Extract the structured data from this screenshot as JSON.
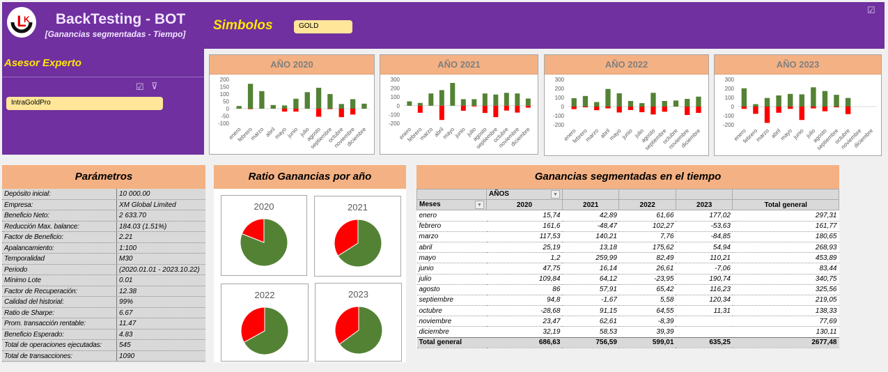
{
  "header": {
    "title": "BackTesting - BOT",
    "subtitle": "[Ganancias segmentadas - Tiempo]",
    "symbols_label": "Simbolos",
    "symbol_selected": "GOLD",
    "expert_label": "Asesor Experto",
    "expert_selected": "IntraGoldPro",
    "logo_text": "LK"
  },
  "colors": {
    "purple": "#7030a0",
    "peach": "#f4b183",
    "gain": "#548235",
    "loss": "#ff0000",
    "slicer": "#ffe699"
  },
  "year_charts": {
    "months": [
      "enero",
      "febrero",
      "marzo",
      "abril",
      "mayo",
      "junio",
      "julio",
      "agosto",
      "septiembre",
      "octubre",
      "noviembre",
      "diciembre"
    ],
    "charts": [
      {
        "title": "AÑO 2020",
        "ylim": [
          -100,
          200
        ],
        "ticks": [
          -100,
          -50,
          0,
          50,
          100,
          150,
          200
        ],
        "gains": [
          18,
          170,
          120,
          25,
          22,
          68,
          113,
          143,
          100,
          32,
          65,
          34
        ],
        "losses": [
          0,
          -3,
          0,
          0,
          -20,
          -20,
          0,
          -55,
          -3,
          -58,
          -40,
          0
        ]
      },
      {
        "title": "AÑO 2021",
        "ylim": [
          -200,
          300
        ],
        "ticks": [
          -200,
          -100,
          0,
          100,
          200,
          300
        ],
        "gains": [
          50,
          32,
          140,
          178,
          260,
          75,
          75,
          140,
          128,
          147,
          140,
          82
        ],
        "losses": [
          0,
          -80,
          0,
          -162,
          0,
          -57,
          -8,
          -82,
          -130,
          -55,
          -78,
          -22
        ]
      },
      {
        "title": "AÑO 2022",
        "ylim": [
          -200,
          300
        ],
        "ticks": [
          -200,
          -100,
          0,
          100,
          200,
          300
        ],
        "gains": [
          93,
          117,
          50,
          195,
          147,
          62,
          38,
          152,
          62,
          67,
          85,
          110
        ],
        "losses": [
          -28,
          -8,
          -40,
          -20,
          -65,
          -38,
          -62,
          -87,
          -57,
          0,
          -93,
          -70
        ]
      },
      {
        "title": "AÑO 2023",
        "ylim": [
          -200,
          300
        ],
        "ticks": [
          -200,
          -100,
          0,
          100,
          200,
          300
        ],
        "gains": [
          202,
          27,
          95,
          123,
          140,
          135,
          213,
          172,
          130,
          95,
          0,
          0
        ],
        "losses": [
          -25,
          -80,
          -180,
          -68,
          -25,
          -148,
          -20,
          -52,
          -8,
          -83,
          0,
          0
        ]
      }
    ]
  },
  "params": {
    "title": "Parámetros",
    "rows": [
      [
        "Depósito inicial:",
        "10 000.00"
      ],
      [
        "Empresa:",
        "XM Global Limited"
      ],
      [
        "Beneficio Neto:",
        "2 633.70"
      ],
      [
        "Reducción Max. balance:",
        "184.03 (1.51%)"
      ],
      [
        "Factor de Beneficio:",
        "2.21"
      ],
      [
        "Apalancamiento:",
        "1:100"
      ],
      [
        "Temporalidad",
        "M30"
      ],
      [
        "Periodo",
        "(2020.01.01 - 2023.10.22)"
      ],
      [
        "Mínimo Lote",
        "0.01"
      ],
      [
        "Factor de Recuperación:",
        "12.38"
      ],
      [
        "Calidad del historial:",
        "99%"
      ],
      [
        "Ratio de Sharpe:",
        "6.67"
      ],
      [
        "Prom. transacción rentable:",
        "11.47"
      ],
      [
        "Beneficio Esperado:",
        "4.83"
      ],
      [
        "Total de operaciones ejecutadas:",
        "545"
      ],
      [
        "Total de transacciones:",
        "1090"
      ]
    ]
  },
  "ratio": {
    "title": "Ratio Ganancias por año",
    "pies": [
      {
        "year": "2020",
        "loss_fraction": 0.19
      },
      {
        "year": "2021",
        "loss_fraction": 0.34
      },
      {
        "year": "2022",
        "loss_fraction": 0.33
      },
      {
        "year": "2023",
        "loss_fraction": 0.35
      }
    ]
  },
  "pivot": {
    "title": "Ganancias segmentadas en el tiempo",
    "col_field": "AÑOS",
    "row_field": "Meses",
    "columns": [
      "2020",
      "2021",
      "2022",
      "2023",
      "Total general"
    ],
    "rows": [
      [
        "enero",
        "15,74",
        "42,89",
        "61,66",
        "177,02",
        "297,31"
      ],
      [
        "febrero",
        "161,6",
        "-48,47",
        "102,27",
        "-53,63",
        "161,77"
      ],
      [
        "marzo",
        "117,53",
        "140,21",
        "7,76",
        "-84,85",
        "180,65"
      ],
      [
        "abril",
        "25,19",
        "13,18",
        "175,62",
        "54,94",
        "268,93"
      ],
      [
        "mayo",
        "1,2",
        "259,99",
        "82,49",
        "110,21",
        "453,89"
      ],
      [
        "junio",
        "47,75",
        "16,14",
        "26,61",
        "-7,06",
        "83,44"
      ],
      [
        "julio",
        "109,84",
        "64,12",
        "-23,95",
        "190,74",
        "340,75"
      ],
      [
        "agosto",
        "86",
        "57,91",
        "65,42",
        "116,23",
        "325,56"
      ],
      [
        "septiembre",
        "94,8",
        "-1,67",
        "5,58",
        "120,34",
        "219,05"
      ],
      [
        "octubre",
        "-28,68",
        "91,15",
        "64,55",
        "11,31",
        "138,33"
      ],
      [
        "noviembre",
        "23,47",
        "62,61",
        "-8,39",
        "",
        "77,69"
      ],
      [
        "diciembre",
        "32,19",
        "58,53",
        "39,39",
        "",
        "130,11"
      ]
    ],
    "total": [
      "Total general",
      "686,63",
      "756,59",
      "599,01",
      "635,25",
      "2677,48"
    ]
  }
}
